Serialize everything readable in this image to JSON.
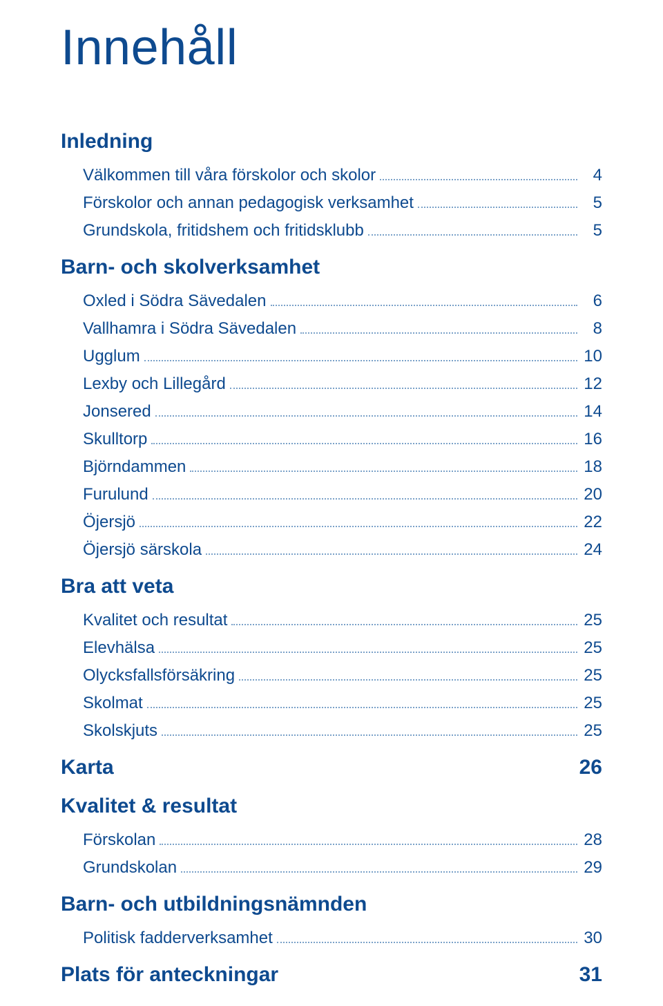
{
  "colors": {
    "text": "#0e4a8f",
    "leader": "#7aa1c8",
    "background": "#ffffff"
  },
  "typography": {
    "title_fontsize": 72,
    "heading_fontsize": 30,
    "item_fontsize": 24,
    "font_family": "Arial"
  },
  "title": "Innehåll",
  "sections": [
    {
      "heading": "Inledning",
      "heading_page": null,
      "items": [
        {
          "label": "Välkommen till våra förskolor och skolor",
          "page": "4"
        },
        {
          "label": "Förskolor och annan pedagogisk verksamhet",
          "page": "5"
        },
        {
          "label": "Grundskola, fritidshem och fritidsklubb",
          "page": "5"
        }
      ]
    },
    {
      "heading": "Barn- och skolverksamhet",
      "heading_page": null,
      "items": [
        {
          "label": "Oxled i Södra Sävedalen",
          "page": "6"
        },
        {
          "label": "Vallhamra i Södra Sävedalen",
          "page": "8"
        },
        {
          "label": "Ugglum",
          "page": "10"
        },
        {
          "label": "Lexby och Lillegård",
          "page": "12"
        },
        {
          "label": "Jonsered",
          "page": "14"
        },
        {
          "label": "Skulltorp",
          "page": "16"
        },
        {
          "label": "Björndammen",
          "page": "18"
        },
        {
          "label": "Furulund",
          "page": "20"
        },
        {
          "label": "Öjersjö",
          "page": "22"
        },
        {
          "label": "Öjersjö särskola",
          "page": "24"
        }
      ]
    },
    {
      "heading": "Bra att veta",
      "heading_page": null,
      "items": [
        {
          "label": "Kvalitet och resultat",
          "page": "25"
        },
        {
          "label": "Elevhälsa",
          "page": "25"
        },
        {
          "label": "Olycksfallsförsäkring",
          "page": "25"
        },
        {
          "label": "Skolmat",
          "page": "25"
        },
        {
          "label": "Skolskjuts",
          "page": "25"
        }
      ]
    },
    {
      "heading": "Karta",
      "heading_page": "26",
      "items": []
    },
    {
      "heading": "Kvalitet & resultat",
      "heading_page": null,
      "items": [
        {
          "label": "Förskolan",
          "page": "28"
        },
        {
          "label": "Grundskolan",
          "page": "29"
        }
      ]
    },
    {
      "heading": "Barn- och utbildningsnämnden",
      "heading_page": null,
      "items": [
        {
          "label": "Politisk fadderverksamhet",
          "page": "30"
        }
      ]
    },
    {
      "heading": "Plats för anteckningar",
      "heading_page": "31",
      "items": []
    }
  ]
}
